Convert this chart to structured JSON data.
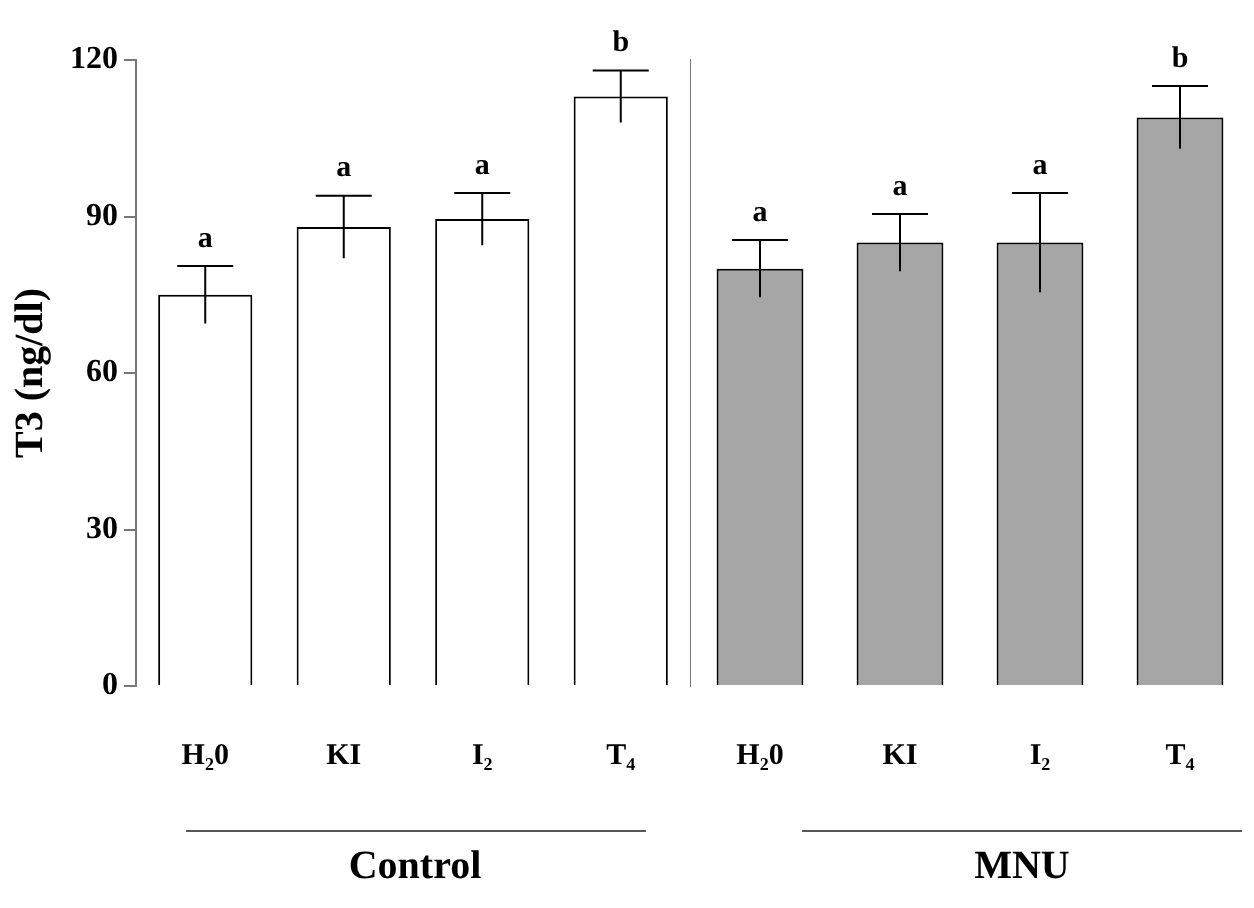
{
  "chart_data": [
    {
      "type": "bar",
      "ylabel": "T3 (ng/dl)",
      "xlabel": "Control",
      "categories": [
        "H₂0",
        "KI",
        "I₂",
        "T₄"
      ],
      "values": [
        75,
        88,
        89.5,
        113
      ],
      "errors": [
        5.5,
        6,
        5,
        5
      ],
      "color": "#ffffff",
      "ylim": [
        0,
        120
      ],
      "yticks": [
        0,
        30,
        60,
        90,
        120
      ],
      "grid": false,
      "legend": false,
      "annotations": [
        {
          "text": "a",
          "x": "H₂0",
          "y": 80.5
        },
        {
          "text": "a",
          "x": "KI",
          "y": 94
        },
        {
          "text": "a",
          "x": "I₂",
          "y": 94.5
        },
        {
          "text": "b",
          "x": "T₄",
          "y": 118
        }
      ]
    },
    {
      "type": "bar",
      "xlabel": "MNU",
      "categories": [
        "H₂0",
        "KI",
        "I₂",
        "T₄"
      ],
      "values": [
        80,
        85,
        85,
        109
      ],
      "errors": [
        5.5,
        5.5,
        9.5,
        6
      ],
      "color": "#a6a6a6",
      "ylim": [
        0,
        120
      ],
      "yticks": [
        0,
        30,
        60,
        90,
        120
      ],
      "grid": false,
      "legend": false,
      "tick_labels": "x",
      "annotations": [
        {
          "text": "a",
          "x": "H₂0",
          "y": 85.5
        },
        {
          "text": "a",
          "x": "KI",
          "y": 90.5
        },
        {
          "text": "a",
          "x": "I₂",
          "y": 94.5
        },
        {
          "text": "b",
          "x": "T₄",
          "y": 115
        }
      ]
    }
  ]
}
